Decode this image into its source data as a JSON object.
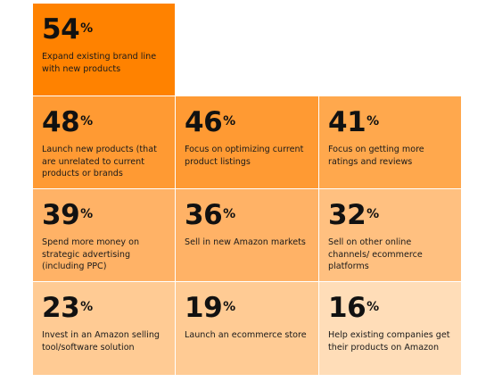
{
  "chart_data": {
    "type": "table",
    "unit": "%",
    "items": [
      {
        "value": 54,
        "label": "Expand existing brand line with new products",
        "color": "#FF8200"
      },
      {
        "value": 48,
        "label": "Launch new products (that are unrelated to current products or brands",
        "color": "#FF9A33"
      },
      {
        "value": 46,
        "label": "Focus on optimizing current product listings",
        "color": "#FF9A33"
      },
      {
        "value": 41,
        "label": "Focus on getting more ratings and reviews",
        "color": "#FFA84D"
      },
      {
        "value": 39,
        "label": "Spend more money on strategic advertising (including PPC)",
        "color": "#FFB266"
      },
      {
        "value": 36,
        "label": "Sell in new Amazon markets",
        "color": "#FFB266"
      },
      {
        "value": 32,
        "label": "Sell on other online channels/ ecommerce platforms",
        "color": "#FFC080"
      },
      {
        "value": 23,
        "label": "Invest in an Amazon selling tool/software solution",
        "color": "#FFCB94"
      },
      {
        "value": 19,
        "label": "Launch an ecommerce store",
        "color": "#FFCB94"
      },
      {
        "value": 16,
        "label": "Help existing companies get their products on Amazon",
        "color": "#FFDDB8"
      }
    ]
  }
}
